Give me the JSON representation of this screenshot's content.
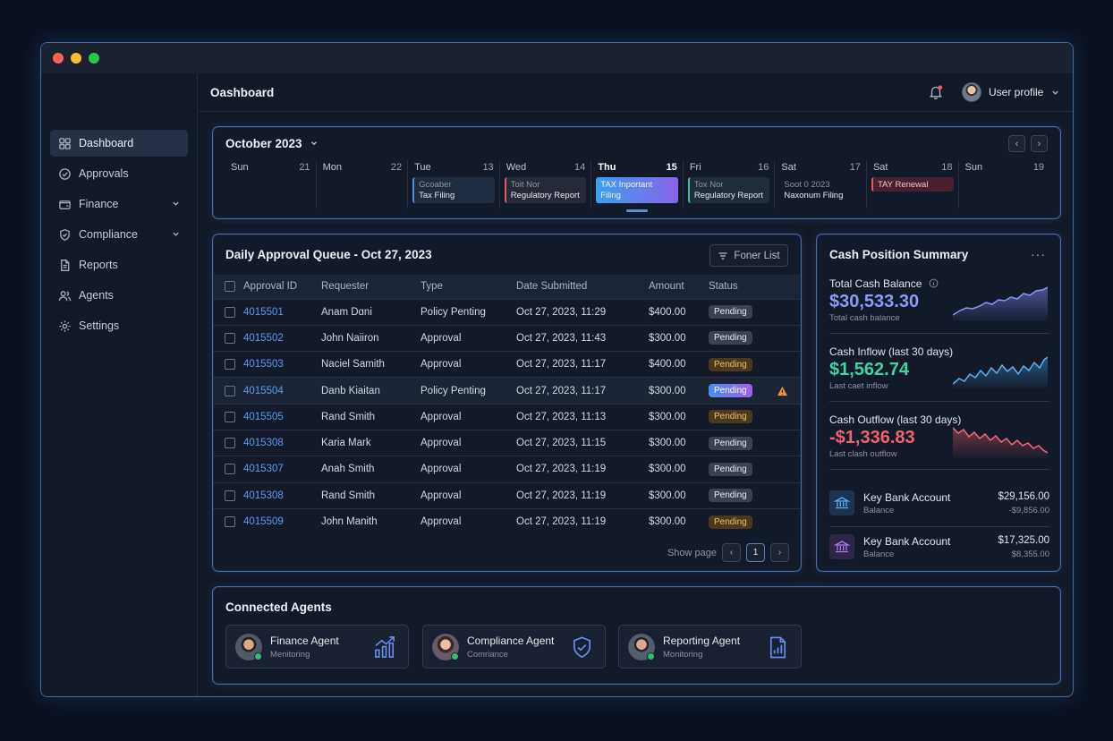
{
  "header": {
    "title": "Oashboard",
    "user_label": "User profile"
  },
  "sidebar": {
    "items": [
      {
        "label": "Dashboard",
        "icon": "grid-icon",
        "active": true
      },
      {
        "label": "Approvals",
        "icon": "check-circle-icon"
      },
      {
        "label": "Finance",
        "icon": "wallet-icon",
        "expandable": true
      },
      {
        "label": "Compliance",
        "icon": "shield-icon",
        "expandable": true
      },
      {
        "label": "Reports",
        "icon": "document-icon"
      },
      {
        "label": "Agents",
        "icon": "users-icon"
      },
      {
        "label": "Settings",
        "icon": "gear-icon"
      }
    ]
  },
  "calendar": {
    "title": "October 2023",
    "days": [
      {
        "name": "Sun",
        "num": "21"
      },
      {
        "name": "Mon",
        "num": "22"
      },
      {
        "name": "Tue",
        "num": "13",
        "event": {
          "line1": "Gcoaber",
          "line2": "Tax Filing",
          "style": "blue"
        }
      },
      {
        "name": "Wed",
        "num": "14",
        "event": {
          "line1": "Toit Nor",
          "line2": "Regulatory Report",
          "style": "red"
        }
      },
      {
        "name": "Thu",
        "num": "15",
        "today": true,
        "event": {
          "line1": "TAX Inportant",
          "line2": "Filing",
          "style": "gradient"
        }
      },
      {
        "name": "Fri",
        "num": "16",
        "event": {
          "line1": "Tox Nor",
          "line2": "Regulatory Report",
          "style": "teal"
        }
      },
      {
        "name": "Sat",
        "num": "17",
        "event": {
          "line1": "Soot 0 2023",
          "line2": "Naxonum Filing",
          "style": "plain"
        }
      },
      {
        "name": "Sat",
        "num": "18",
        "event": {
          "line1": "TAY Renewal",
          "line2": "",
          "style": "renewal"
        }
      },
      {
        "name": "Sun",
        "num": "19"
      }
    ]
  },
  "queue": {
    "title": "Daily Approval Queue - Oct 27, 2023",
    "filter_label": "Foner List",
    "columns": [
      "Approval ID",
      "Requester",
      "Type",
      "Date Submitted",
      "Amount",
      "Status"
    ],
    "rows": [
      {
        "id": "4015501",
        "requester": "Anam Dɑni",
        "type": "Policy Penting",
        "date": "Oct 27, 2023, 11:29",
        "amount": "$400.00",
        "status": "Pending",
        "style": "gray"
      },
      {
        "id": "4015502",
        "requester": "John Naiiron",
        "type": "Approval",
        "date": "Oct 27, 2023, 11:43",
        "amount": "$300.00",
        "status": "Pending",
        "style": "gray"
      },
      {
        "id": "4015503",
        "requester": "Naciel Samith",
        "type": "Approval",
        "date": "Oct 27, 2023, 11:17",
        "amount": "$400.00",
        "status": "Pending",
        "style": "amber"
      },
      {
        "id": "4015504",
        "requester": "Danb Kiaitan",
        "type": "Policy Penting",
        "date": "Oct 27, 2023, 11:17",
        "amount": "$300.00",
        "status": "Pending",
        "style": "gradient",
        "warning": true
      },
      {
        "id": "4015505",
        "requester": "Rand Smith",
        "type": "Approval",
        "date": "Oct 27, 2023, 11:13",
        "amount": "$300.00",
        "status": "Pending",
        "style": "amber"
      },
      {
        "id": "4015308",
        "requester": "Karia Mark",
        "type": "Approval",
        "date": "Oct 27, 2023, 11:15",
        "amount": "$300.00",
        "status": "Pending",
        "style": "gray"
      },
      {
        "id": "4015307",
        "requester": "Anah Smith",
        "type": "Approval",
        "date": "Oct 27, 2023, 11:19",
        "amount": "$300.00",
        "status": "Pending",
        "style": "gray"
      },
      {
        "id": "4015308",
        "requester": "Rand Smith",
        "type": "Approval",
        "date": "Oct 27, 2023, 11:19",
        "amount": "$300.00",
        "status": "Pending",
        "style": "gray"
      },
      {
        "id": "4015509",
        "requester": "John Manith",
        "type": "Approval",
        "date": "Oct 27, 2023, 11:19",
        "amount": "$300.00",
        "status": "Pending",
        "style": "amber"
      }
    ],
    "pager": {
      "label": "Show page",
      "current": "1"
    }
  },
  "cash": {
    "title": "Cash Position Summary",
    "metrics": [
      {
        "label": "Total Cash Balance",
        "value": "$30,533.30",
        "sub": "Total cash balance",
        "color": "#8c9cf5",
        "info": true
      },
      {
        "label": "Cash Inflow (last 30 days)",
        "value": "$1,562.74",
        "sub": "Last caet inflow",
        "color": "#3fd4a0"
      },
      {
        "label": "Cash Outflow (last 30 days)",
        "value": "-$1,336.83",
        "sub": "Last clash outflow",
        "color": "#f0626e"
      }
    ],
    "accounts": [
      {
        "name": "Key Bank Account",
        "sub": "Balance",
        "amount": "$29,156.00",
        "amount2": "-$9,856.00",
        "icon": "bank-icon"
      },
      {
        "name": "Key Bank Account",
        "sub": "Balance",
        "amount": "$17,325.00",
        "amount2": "$8,355.00",
        "icon": "bank-icon"
      }
    ]
  },
  "agents": {
    "title": "Connected Agents",
    "items": [
      {
        "name": "Finance Agent",
        "status": "Menitoring",
        "icon": "chart-growth-icon"
      },
      {
        "name": "Compliance Agent",
        "status": "Comriance",
        "icon": "shield-check-icon"
      },
      {
        "name": "Reporting Agent",
        "status": "Monitoring",
        "icon": "report-chart-icon"
      }
    ]
  },
  "colors": {
    "accent": "#5a9cf0",
    "panel_border": "#3d6fa8",
    "background": "#0b1120"
  }
}
